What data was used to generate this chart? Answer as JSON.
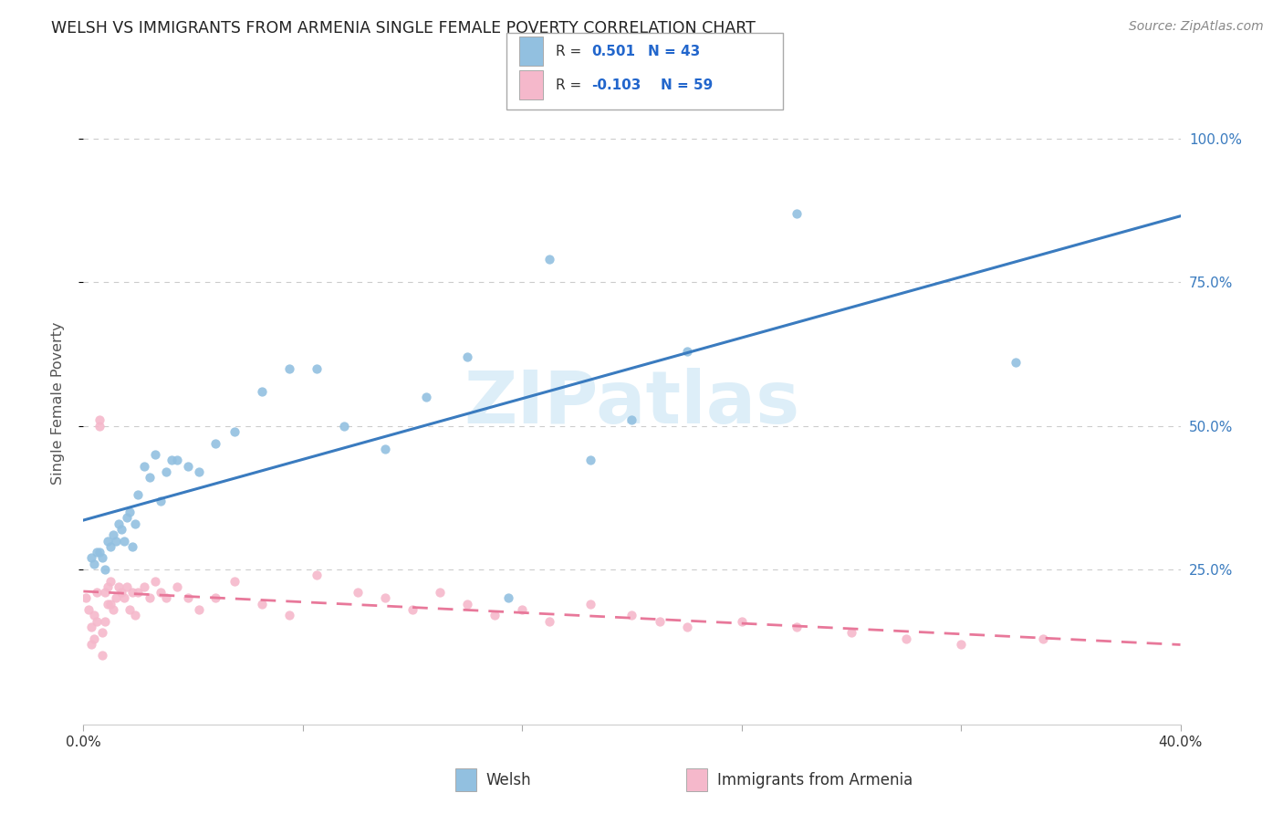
{
  "title": "WELSH VS IMMIGRANTS FROM ARMENIA SINGLE FEMALE POVERTY CORRELATION CHART",
  "source": "Source: ZipAtlas.com",
  "xlabel_welsh": "Welsh",
  "xlabel_armenia": "Immigrants from Armenia",
  "ylabel": "Single Female Poverty",
  "xlim": [
    0.0,
    0.4
  ],
  "ylim": [
    -0.02,
    1.1
  ],
  "welsh_R": 0.501,
  "welsh_N": 43,
  "armenia_R": -0.103,
  "armenia_N": 59,
  "welsh_color": "#92c0e0",
  "armenia_color": "#f5b8cb",
  "welsh_line_color": "#3a7bbf",
  "armenia_line_color": "#e8789a",
  "legend_R_color": "#2266cc",
  "watermark": "ZIPatlas",
  "watermark_color": "#ddeef8",
  "welsh_x": [
    0.003,
    0.004,
    0.005,
    0.006,
    0.007,
    0.008,
    0.009,
    0.01,
    0.011,
    0.012,
    0.013,
    0.014,
    0.015,
    0.016,
    0.017,
    0.018,
    0.019,
    0.02,
    0.022,
    0.024,
    0.026,
    0.028,
    0.03,
    0.032,
    0.034,
    0.038,
    0.042,
    0.048,
    0.055,
    0.065,
    0.075,
    0.085,
    0.095,
    0.11,
    0.125,
    0.14,
    0.155,
    0.17,
    0.185,
    0.2,
    0.22,
    0.26,
    0.34
  ],
  "welsh_y": [
    0.27,
    0.26,
    0.28,
    0.28,
    0.27,
    0.25,
    0.3,
    0.29,
    0.31,
    0.3,
    0.33,
    0.32,
    0.3,
    0.34,
    0.35,
    0.29,
    0.33,
    0.38,
    0.43,
    0.41,
    0.45,
    0.37,
    0.42,
    0.44,
    0.44,
    0.43,
    0.42,
    0.47,
    0.49,
    0.56,
    0.6,
    0.6,
    0.5,
    0.46,
    0.55,
    0.62,
    0.2,
    0.79,
    0.44,
    0.51,
    0.63,
    0.87,
    0.61
  ],
  "armenia_x": [
    0.001,
    0.002,
    0.003,
    0.003,
    0.004,
    0.004,
    0.005,
    0.005,
    0.006,
    0.006,
    0.007,
    0.007,
    0.008,
    0.008,
    0.009,
    0.009,
    0.01,
    0.01,
    0.011,
    0.012,
    0.013,
    0.014,
    0.015,
    0.016,
    0.017,
    0.018,
    0.019,
    0.02,
    0.022,
    0.024,
    0.026,
    0.028,
    0.03,
    0.034,
    0.038,
    0.042,
    0.048,
    0.055,
    0.065,
    0.075,
    0.085,
    0.1,
    0.11,
    0.12,
    0.13,
    0.14,
    0.15,
    0.16,
    0.17,
    0.185,
    0.2,
    0.21,
    0.22,
    0.24,
    0.26,
    0.28,
    0.3,
    0.32,
    0.35
  ],
  "armenia_y": [
    0.2,
    0.18,
    0.12,
    0.15,
    0.13,
    0.17,
    0.16,
    0.21,
    0.5,
    0.51,
    0.1,
    0.14,
    0.16,
    0.21,
    0.19,
    0.22,
    0.23,
    0.19,
    0.18,
    0.2,
    0.22,
    0.21,
    0.2,
    0.22,
    0.18,
    0.21,
    0.17,
    0.21,
    0.22,
    0.2,
    0.23,
    0.21,
    0.2,
    0.22,
    0.2,
    0.18,
    0.2,
    0.23,
    0.19,
    0.17,
    0.24,
    0.21,
    0.2,
    0.18,
    0.21,
    0.19,
    0.17,
    0.18,
    0.16,
    0.19,
    0.17,
    0.16,
    0.15,
    0.16,
    0.15,
    0.14,
    0.13,
    0.12,
    0.13
  ],
  "grid_color": "#cccccc",
  "bg_color": "#ffffff",
  "title_color": "#222222",
  "axis_label_color": "#555555",
  "tick_color_right": "#3a7bbf",
  "yticks": [
    0.25,
    0.5,
    0.75,
    1.0
  ],
  "ytick_labels": [
    "25.0%",
    "50.0%",
    "75.0%",
    "100.0%"
  ],
  "xtick_positions": [
    0.0,
    0.08,
    0.16,
    0.24,
    0.32,
    0.4
  ],
  "xtick_labels": [
    "0.0%",
    "",
    "",
    "",
    "",
    "40.0%"
  ]
}
